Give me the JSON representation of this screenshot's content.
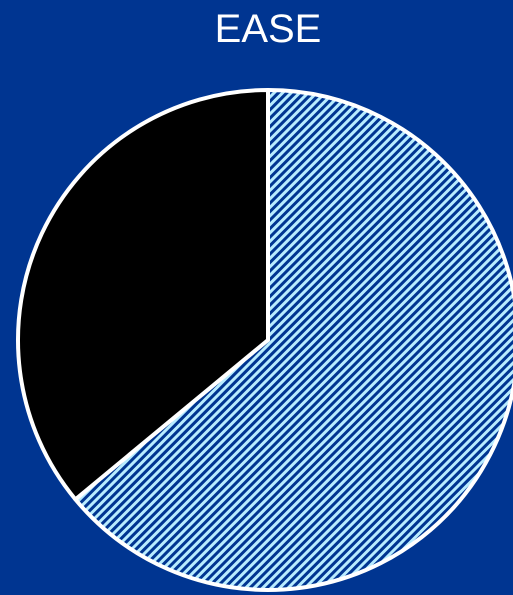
{
  "chart_data": {
    "type": "pie",
    "title": "EASE",
    "slices": [
      {
        "value": 64,
        "fill": "hatch-blue"
      },
      {
        "value": 36,
        "fill": "#000000"
      }
    ],
    "start_angle_deg": 0,
    "direction": "clockwise",
    "legend": "none"
  },
  "colors": {
    "background": "#003591",
    "outline": "#ffffff",
    "hatch_light": "#b8ecff",
    "hatch_dark": "#003591",
    "dark_slice": "#000000"
  }
}
